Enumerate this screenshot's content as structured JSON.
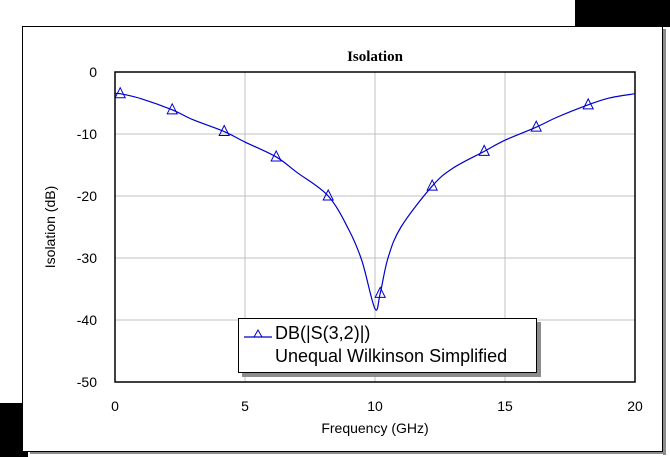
{
  "chart_data": {
    "type": "line",
    "title": "Isolation",
    "xlabel": "Frequency (GHz)",
    "ylabel": "Isolation (dB)",
    "xlim": [
      0,
      20
    ],
    "ylim": [
      -50,
      0
    ],
    "xticks": [
      "0",
      "5",
      "10",
      "15",
      "20"
    ],
    "yticks": [
      "0",
      "-10",
      "-20",
      "-30",
      "-40",
      "-50"
    ],
    "grid": true,
    "legend_position": "bottom-center inside plot",
    "series": [
      {
        "name": "DB(|S(3,2)|)",
        "source": "Unequal Wilkinson Simplified",
        "color": "#0000cc",
        "marker": "triangle",
        "x": [
          0,
          0.2,
          1,
          2.2,
          3,
          4.2,
          5,
          6.2,
          7,
          8.2,
          9,
          9.5,
          10,
          10.2,
          10.5,
          11,
          12.2,
          13,
          14.2,
          15,
          16.2,
          17,
          18.2,
          19,
          20
        ],
        "y": [
          -3.5,
          -3.5,
          -4.3,
          -6.1,
          -7.7,
          -9.6,
          -11.3,
          -13.7,
          -16.2,
          -20.0,
          -25.5,
          -30.5,
          -38.2,
          -35.7,
          -30.0,
          -25.0,
          -18.4,
          -15.5,
          -12.8,
          -11.0,
          -8.9,
          -7.3,
          -5.3,
          -4.2,
          -3.5
        ]
      }
    ],
    "markers_x": [
      0.2,
      2.2,
      4.2,
      6.2,
      8.2,
      10.2,
      12.2,
      14.2,
      16.2,
      18.2
    ]
  },
  "legend": {
    "series_label": "DB(|S(3,2)|)",
    "source_label": "Unequal Wilkinson Simplified"
  }
}
